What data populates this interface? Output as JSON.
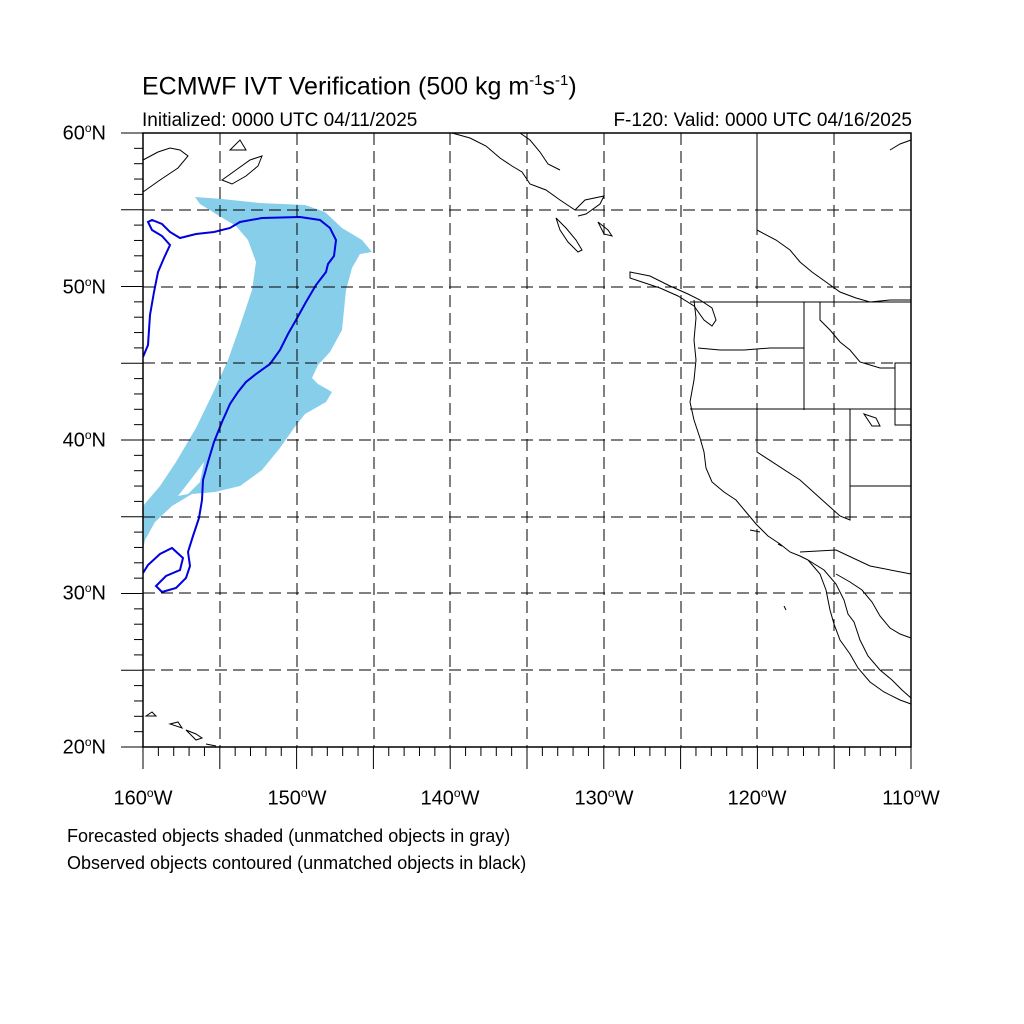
{
  "title": {
    "main": "ECMWF IVT Verification (500 kg m",
    "exp1": "-1",
    "mid": "s",
    "exp2": "-1",
    "end": ")"
  },
  "subtitle_left": "Initialized: 0000 UTC 04/11/2025",
  "subtitle_right": "F-120: Valid: 0000 UTC 04/16/2025",
  "lat_labels": [
    "60",
    "50",
    "40",
    "30",
    "20"
  ],
  "lat_suffix": "N",
  "lon_labels": [
    "160",
    "150",
    "140",
    "130",
    "120",
    "110"
  ],
  "lon_suffix": "W",
  "degree_symbol": "o",
  "notes": [
    "Forecasted objects shaded (unmatched objects in gray)",
    "Observed objects contoured (unmatched objects in black)"
  ],
  "colors": {
    "forecast_fill": "#87CEEB",
    "observed_contour": "#0000E0",
    "coastline": "#000000",
    "grid": "#000000"
  },
  "map_extent": {
    "lon_min": -160,
    "lon_max": -110,
    "lat_min": 20,
    "lat_max": 60
  },
  "gridlines": {
    "style": "dashed",
    "lon_step": 5,
    "lat_step": 5
  }
}
